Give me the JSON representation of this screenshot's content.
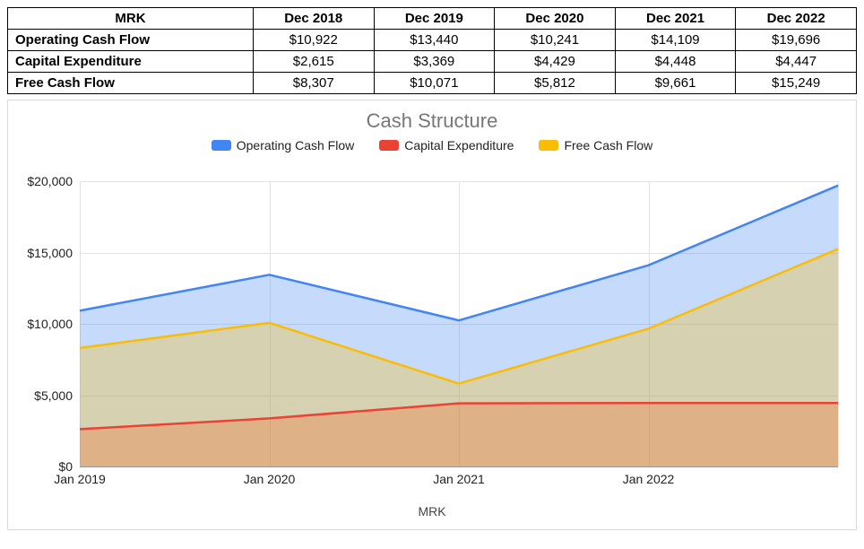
{
  "table": {
    "header_label": "MRK",
    "columns": [
      "Dec 2018",
      "Dec 2019",
      "Dec 2020",
      "Dec 2021",
      "Dec 2022"
    ],
    "rows": [
      {
        "label": "Operating Cash Flow",
        "cells": [
          "$10,922",
          "$13,440",
          "$10,241",
          "$14,109",
          "$19,696"
        ]
      },
      {
        "label": "Capital Expenditure",
        "cells": [
          "$2,615",
          "$3,369",
          "$4,429",
          "$4,448",
          "$4,447"
        ]
      },
      {
        "label": "Free Cash Flow",
        "cells": [
          "$8,307",
          "$10,071",
          "$5,812",
          "$9,661",
          "$15,249"
        ]
      }
    ],
    "border_color": "#000000",
    "header_fontsize": 15,
    "cell_fontsize": 15
  },
  "chart": {
    "type": "area",
    "title": "Cash Structure",
    "title_fontsize": 22,
    "title_color": "#777777",
    "x_title": "MRK",
    "background_color": "#ffffff",
    "grid_color": "#e2e2e2",
    "ylim": [
      0,
      20000
    ],
    "ytick_step": 5000,
    "ytick_labels": [
      "$0",
      "$5,000",
      "$10,000",
      "$15,000",
      "$20,000"
    ],
    "x_categories": [
      "Jan 2019",
      "Jan 2020",
      "Jan 2021",
      "Jan 2022"
    ],
    "x_n_points": 5,
    "series": [
      {
        "name": "Operating Cash Flow",
        "color": "#4285f4",
        "fill_color": "#4285f4",
        "fill_opacity": 0.3,
        "line_width": 2.5,
        "values": [
          10922,
          13440,
          10241,
          14109,
          19696
        ]
      },
      {
        "name": "Capital Expenditure",
        "color": "#ea4335",
        "fill_color": "#ea4335",
        "fill_opacity": 0.3,
        "line_width": 2.5,
        "values": [
          2615,
          3369,
          4429,
          4448,
          4447
        ]
      },
      {
        "name": "Free Cash Flow",
        "color": "#fbbc04",
        "fill_color": "#fbbc04",
        "fill_opacity": 0.3,
        "line_width": 2.5,
        "values": [
          8307,
          10071,
          5812,
          9661,
          15249
        ]
      }
    ],
    "legend_fontsize": 14,
    "axis_label_fontsize": 14
  }
}
